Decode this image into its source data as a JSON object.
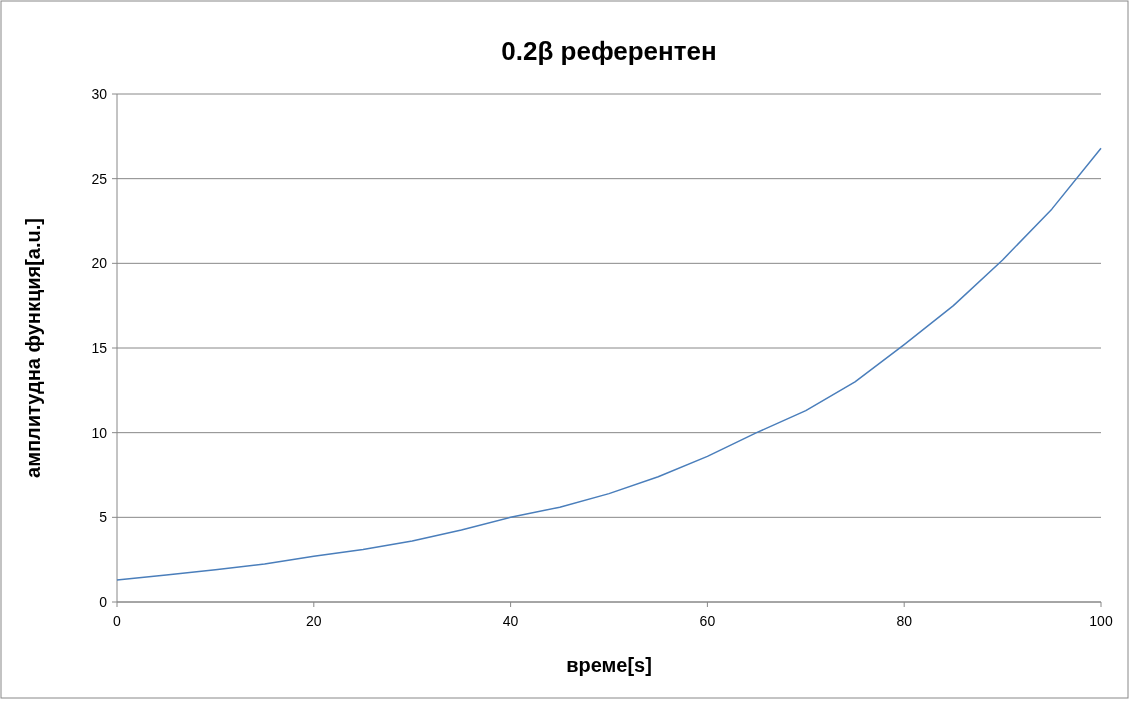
{
  "chart_data": {
    "type": "line",
    "title": "0.2β референтен",
    "xlabel": "време[s]",
    "ylabel": "амплитудна функция[a.u.]",
    "x": [
      0,
      5,
      10,
      15,
      20,
      25,
      30,
      35,
      40,
      45,
      50,
      55,
      60,
      65,
      70,
      75,
      80,
      85,
      90,
      95,
      100
    ],
    "series": [
      {
        "color": "#4a7ebb",
        "values": [
          1.3,
          1.6,
          1.9,
          2.25,
          2.7,
          3.1,
          3.6,
          4.25,
          5.0,
          5.6,
          6.4,
          7.4,
          8.6,
          10.0,
          11.3,
          13.0,
          15.2,
          17.5,
          20.2,
          23.2,
          26.8
        ]
      }
    ],
    "xlim": [
      0,
      100
    ],
    "xticks": [
      0,
      20,
      40,
      60,
      80,
      100
    ],
    "ylim": [
      0,
      30
    ],
    "yticks": [
      0,
      5,
      10,
      15,
      20,
      25,
      30
    ],
    "grid": "y",
    "marker": "none",
    "line_style": "solid"
  }
}
